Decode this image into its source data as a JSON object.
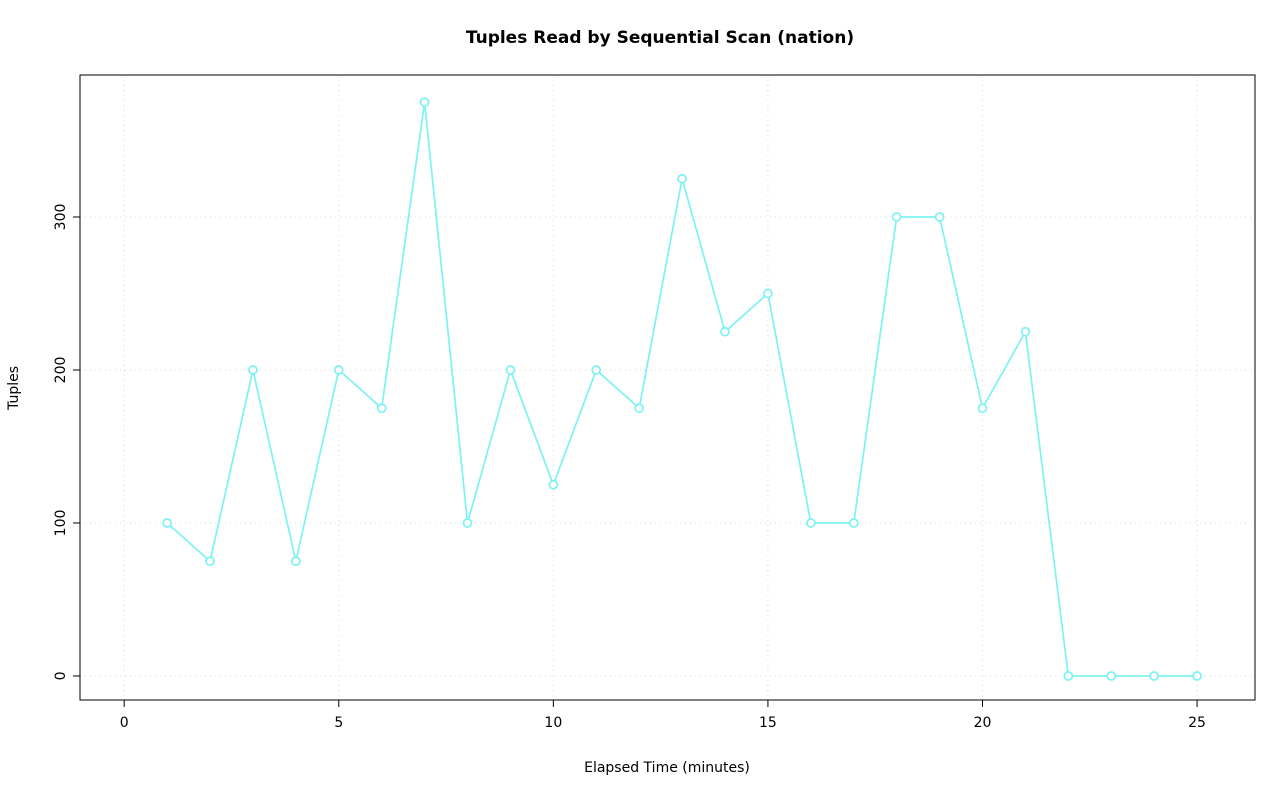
{
  "chart_data": {
    "type": "line",
    "title": "Tuples Read by Sequential Scan (nation)",
    "xlabel": "Elapsed Time (minutes)",
    "ylabel": "Tuples",
    "x": [
      1,
      2,
      3,
      4,
      5,
      6,
      7,
      8,
      9,
      10,
      11,
      12,
      13,
      14,
      15,
      16,
      17,
      18,
      19,
      20,
      21,
      22,
      23,
      24,
      25
    ],
    "y": [
      100,
      75,
      200,
      75,
      200,
      175,
      375,
      100,
      200,
      125,
      200,
      175,
      325,
      225,
      250,
      100,
      100,
      300,
      300,
      175,
      225,
      0,
      0,
      0,
      0
    ],
    "x_ticks": [
      0,
      5,
      10,
      15,
      20,
      25
    ],
    "y_ticks": [
      0,
      100,
      200,
      300
    ],
    "xlim": [
      -1.03,
      26.35
    ],
    "ylim": [
      -15.7,
      392.8
    ],
    "grid": true,
    "legend": "none",
    "line_color": "#7df2f2",
    "marker": "open-circle",
    "marker_radius": 4,
    "grid_color": "#d9d9d9",
    "axis_color": "#000000",
    "background_color": "#ffffff"
  }
}
